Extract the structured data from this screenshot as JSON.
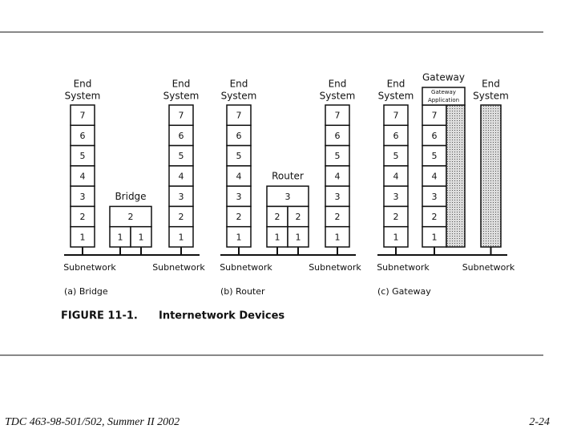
{
  "slide": {
    "footer_left": "TDC 463-98-501/502, Summer II 2002",
    "footer_right": "2-24"
  },
  "figure": {
    "title": "FIGURE 11-1.",
    "subtitle": "Internetwork Devices",
    "panels": [
      {
        "caption": "(a) Bridge",
        "left_system": {
          "title": [
            "End",
            "System"
          ],
          "layers": [
            [
              7
            ],
            [
              6
            ],
            [
              5
            ],
            [
              4
            ],
            [
              3
            ],
            [
              2
            ],
            [
              1
            ]
          ]
        },
        "device": {
          "title": [
            "Bridge"
          ],
          "layers": [
            [
              2
            ],
            [
              1,
              1
            ]
          ]
        },
        "right_system": {
          "title": [
            "End",
            "System"
          ],
          "layers": [
            [
              7
            ],
            [
              6
            ],
            [
              5
            ],
            [
              4
            ],
            [
              3
            ],
            [
              2
            ],
            [
              1
            ]
          ]
        },
        "subnets": [
          "Subnetwork",
          "Subnetwork"
        ]
      },
      {
        "caption": "(b) Router",
        "left_system": {
          "title": [
            "End",
            "System"
          ],
          "layers": [
            [
              7
            ],
            [
              6
            ],
            [
              5
            ],
            [
              4
            ],
            [
              3
            ],
            [
              2
            ],
            [
              1
            ]
          ]
        },
        "device": {
          "title": [
            "Router"
          ],
          "layers": [
            [
              3
            ],
            [
              2,
              2
            ],
            [
              1,
              1
            ]
          ]
        },
        "right_system": {
          "title": [
            "End",
            "System"
          ],
          "layers": [
            [
              7
            ],
            [
              6
            ],
            [
              5
            ],
            [
              4
            ],
            [
              3
            ],
            [
              2
            ],
            [
              1
            ]
          ]
        },
        "subnets": [
          "Subnetwork",
          "Subnetwork"
        ]
      },
      {
        "caption": "(c) Gateway",
        "left_system": {
          "title": [
            "End",
            "System"
          ],
          "layers": [
            [
              7
            ],
            [
              6
            ],
            [
              5
            ],
            [
              4
            ],
            [
              3
            ],
            [
              2
            ],
            [
              1
            ]
          ]
        },
        "device": {
          "title": [
            "Gateway"
          ],
          "application": [
            "Gateway",
            "Application"
          ],
          "layers": [
            [
              7
            ],
            [
              6
            ],
            [
              5
            ],
            [
              4
            ],
            [
              3
            ],
            [
              2
            ],
            [
              1
            ]
          ]
        },
        "right_system": {
          "title": [
            "End",
            "System"
          ],
          "layers": []
        },
        "subnets": [
          "Subnetwork",
          "Subnetwork"
        ]
      }
    ]
  }
}
